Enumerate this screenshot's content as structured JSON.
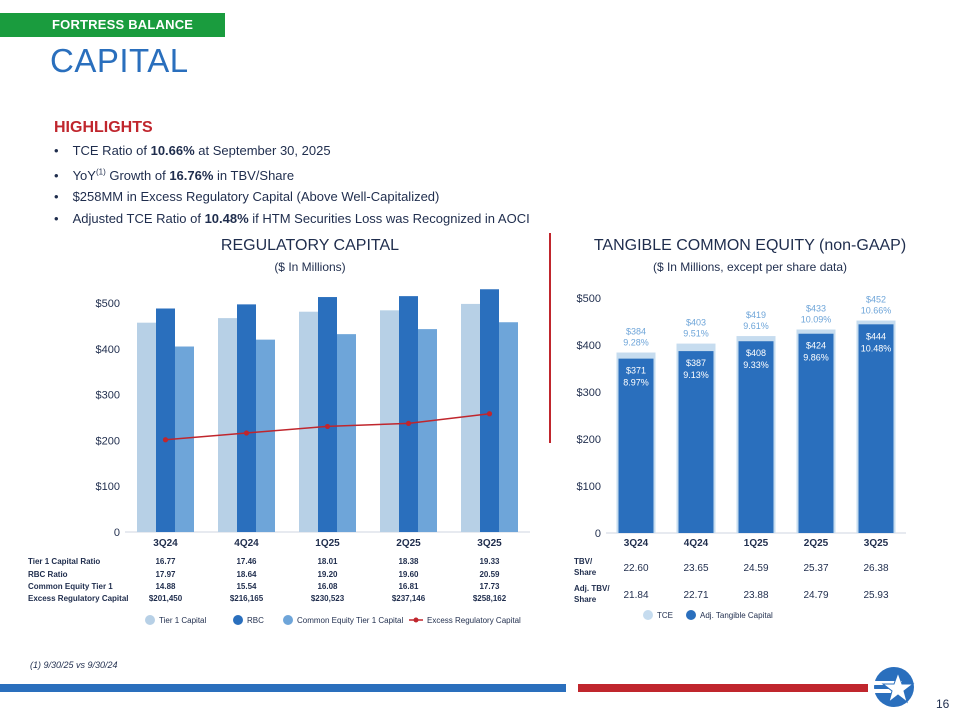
{
  "header": {
    "tag": "FORTRESS BALANCE SHEET",
    "title": "CAPITAL"
  },
  "highlights": {
    "title": "HIGHLIGHTS",
    "items": [
      "TCE Ratio of 10.66% at September 30, 2025",
      "YoY(1) Growth of 16.76% in TBV/Share",
      "$258MM in Excess Regulatory Capital (Above Well-Capitalized)",
      "Adjusted TCE Ratio of 10.48% if HTM Securities Loss was Recognized in AOCI"
    ]
  },
  "colors": {
    "tier1": "#b7d0e6",
    "rbc": "#2a6fbd",
    "cet1": "#6ea5d9",
    "excess": "#c0262d",
    "tce": "#c6dcef",
    "adj": "#2a6fbd",
    "brand_red": "#c0262d",
    "brand_green": "#1a9c3e"
  },
  "chart_data": [
    {
      "type": "bar",
      "title": "REGULATORY CAPITAL",
      "subtitle": "($ In Millions)",
      "categories": [
        "3Q24",
        "4Q24",
        "1Q25",
        "2Q25",
        "3Q25"
      ],
      "ylim": [
        0,
        500
      ],
      "yticks": [
        0,
        100,
        200,
        300,
        400,
        500
      ],
      "ytick_labels": [
        "0",
        "$100",
        "$200",
        "$300",
        "$400",
        "$500"
      ],
      "series": [
        {
          "name": "Tier 1 Capital",
          "values": [
            457,
            467,
            481,
            484,
            498
          ]
        },
        {
          "name": "RBC",
          "values": [
            488,
            497,
            513,
            515,
            530
          ]
        },
        {
          "name": "Common Equity Tier 1 Capital",
          "values": [
            405,
            420,
            432,
            443,
            458
          ]
        },
        {
          "name": "Excess Regulatory Capital",
          "kind": "line",
          "values": [
            201.45,
            216.165,
            230.523,
            237.146,
            258.162
          ]
        }
      ],
      "table": {
        "rows": [
          {
            "label": "Tier 1 Capital Ratio",
            "values": [
              "16.77",
              "17.46",
              "18.01",
              "18.38",
              "19.33"
            ]
          },
          {
            "label": "RBC Ratio",
            "values": [
              "17.97",
              "18.64",
              "19.20",
              "19.60",
              "20.59"
            ]
          },
          {
            "label": "Common Equity Tier 1",
            "values": [
              "14.88",
              "15.54",
              "16.08",
              "16.81",
              "17.73"
            ]
          },
          {
            "label": "Excess Regulatory Capital",
            "values": [
              "$201,450",
              "$216,165",
              "$230,523",
              "$237,146",
              "$258,162"
            ]
          }
        ]
      },
      "legend": [
        "Tier 1 Capital",
        "RBC",
        "Common Equity Tier 1 Capital",
        "Excess Regulatory Capital"
      ]
    },
    {
      "type": "bar",
      "title": "TANGIBLE COMMON EQUITY (non-GAAP)",
      "subtitle": "($ In Millions, except per share data)",
      "categories": [
        "3Q24",
        "4Q24",
        "1Q25",
        "2Q25",
        "3Q25"
      ],
      "ylim": [
        0,
        500
      ],
      "yticks": [
        0,
        100,
        200,
        300,
        400,
        500
      ],
      "ytick_labels": [
        "0",
        "$100",
        "$200",
        "$300",
        "$400",
        "$500"
      ],
      "series": [
        {
          "name": "TCE",
          "values": [
            384,
            403,
            419,
            433,
            452
          ],
          "labels": [
            "$384",
            "$403",
            "$419",
            "$433",
            "$452"
          ],
          "ratios": [
            "9.28%",
            "9.51%",
            "9.61%",
            "10.09%",
            "10.66%"
          ]
        },
        {
          "name": "Adj. Tangible Capital",
          "values": [
            371,
            387,
            408,
            424,
            444
          ],
          "labels": [
            "$371",
            "$387",
            "$408",
            "$424",
            "$444"
          ],
          "ratios": [
            "8.97%",
            "9.13%",
            "9.33%",
            "9.86%",
            "10.48%"
          ]
        }
      ],
      "table": {
        "rows": [
          {
            "label": "TBV/\nShare",
            "values": [
              "22.60",
              "23.65",
              "24.59",
              "25.37",
              "26.38"
            ]
          },
          {
            "label": "Adj. TBV/\nShare",
            "values": [
              "21.84",
              "22.71",
              "23.88",
              "24.79",
              "25.93"
            ]
          }
        ]
      },
      "legend": [
        "TCE",
        "Adj. Tangible Capital"
      ]
    }
  ],
  "footnote": "(1) 9/30/25 vs 9/30/24",
  "page_number": "16"
}
